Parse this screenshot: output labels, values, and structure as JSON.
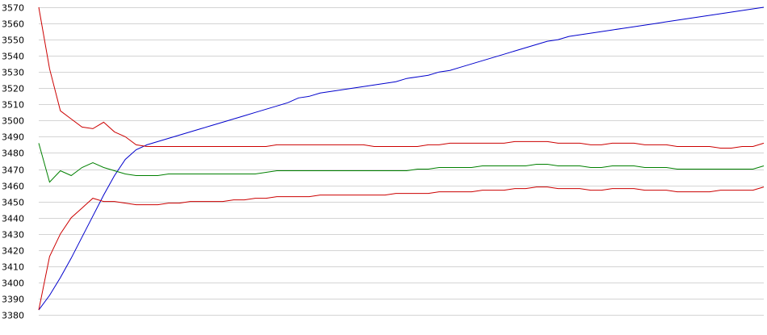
{
  "chart_data": {
    "type": "line",
    "title": "",
    "xlabel": "",
    "ylabel": "",
    "ylim": [
      3380,
      3570
    ],
    "yticks": [
      3570,
      3560,
      3550,
      3540,
      3530,
      3520,
      3510,
      3500,
      3490,
      3480,
      3470,
      3460,
      3450,
      3440,
      3430,
      3420,
      3410,
      3400,
      3390,
      3380
    ],
    "grid": true,
    "legend": "none",
    "series": [
      {
        "color": "#0000cc",
        "values": [
          3383,
          3392,
          3403,
          3415,
          3428,
          3441,
          3454,
          3466,
          3476,
          3482,
          3485,
          3487,
          3489,
          3491,
          3493,
          3495,
          3497,
          3499,
          3501,
          3503,
          3505,
          3507,
          3509,
          3511,
          3514,
          3515,
          3517,
          3518,
          3519,
          3520,
          3521,
          3522,
          3523,
          3524,
          3526,
          3527,
          3528,
          3530,
          3531,
          3533,
          3535,
          3537,
          3539,
          3541,
          3543,
          3545,
          3547,
          3549,
          3550,
          3552,
          3553,
          3554,
          3555,
          3556,
          3557,
          3558,
          3559,
          3560,
          3561,
          3562,
          3563,
          3564,
          3565,
          3566,
          3567,
          3568,
          3569,
          3570
        ]
      },
      {
        "color": "#cc0000",
        "values": [
          3570,
          3532,
          3506,
          3501,
          3496,
          3495,
          3499,
          3493,
          3490,
          3485,
          3484,
          3484,
          3484,
          3484,
          3484,
          3484,
          3484,
          3484,
          3484,
          3484,
          3484,
          3484,
          3485,
          3485,
          3485,
          3485,
          3485,
          3485,
          3485,
          3485,
          3485,
          3484,
          3484,
          3484,
          3484,
          3484,
          3485,
          3485,
          3486,
          3486,
          3486,
          3486,
          3486,
          3486,
          3487,
          3487,
          3487,
          3487,
          3486,
          3486,
          3486,
          3485,
          3485,
          3486,
          3486,
          3486,
          3485,
          3485,
          3485,
          3484,
          3484,
          3484,
          3484,
          3483,
          3483,
          3484,
          3484,
          3486
        ]
      },
      {
        "color": "#008000",
        "values": [
          3486,
          3462,
          3469,
          3466,
          3471,
          3474,
          3471,
          3469,
          3467,
          3466,
          3466,
          3466,
          3467,
          3467,
          3467,
          3467,
          3467,
          3467,
          3467,
          3467,
          3467,
          3468,
          3469,
          3469,
          3469,
          3469,
          3469,
          3469,
          3469,
          3469,
          3469,
          3469,
          3469,
          3469,
          3469,
          3470,
          3470,
          3471,
          3471,
          3471,
          3471,
          3472,
          3472,
          3472,
          3472,
          3472,
          3473,
          3473,
          3472,
          3472,
          3472,
          3471,
          3471,
          3472,
          3472,
          3472,
          3471,
          3471,
          3471,
          3470,
          3470,
          3470,
          3470,
          3470,
          3470,
          3470,
          3470,
          3472
        ]
      },
      {
        "color": "#cc0000",
        "values": [
          3383,
          3416,
          3430,
          3440,
          3446,
          3452,
          3450,
          3450,
          3449,
          3448,
          3448,
          3448,
          3449,
          3449,
          3450,
          3450,
          3450,
          3450,
          3451,
          3451,
          3452,
          3452,
          3453,
          3453,
          3453,
          3453,
          3454,
          3454,
          3454,
          3454,
          3454,
          3454,
          3454,
          3455,
          3455,
          3455,
          3455,
          3456,
          3456,
          3456,
          3456,
          3457,
          3457,
          3457,
          3458,
          3458,
          3459,
          3459,
          3458,
          3458,
          3458,
          3457,
          3457,
          3458,
          3458,
          3458,
          3457,
          3457,
          3457,
          3456,
          3456,
          3456,
          3456,
          3457,
          3457,
          3457,
          3457,
          3459
        ]
      }
    ]
  }
}
